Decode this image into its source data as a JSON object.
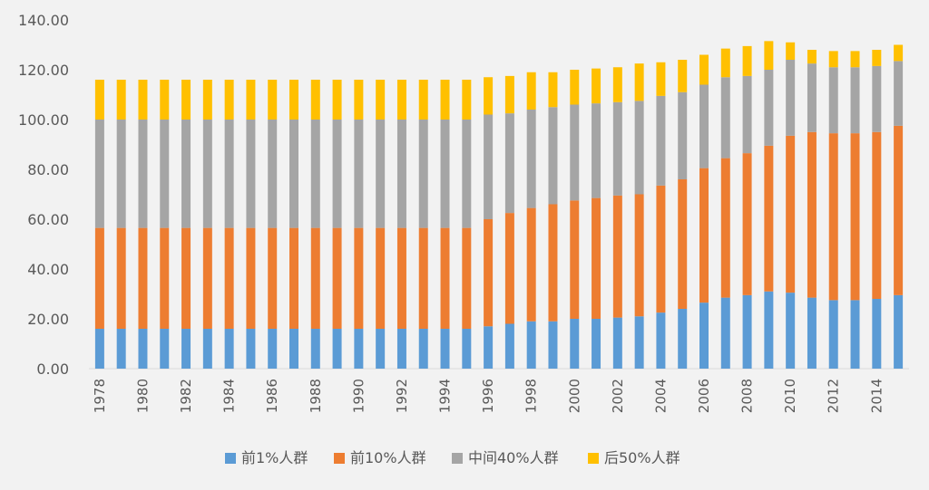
{
  "chart_data": {
    "type": "bar",
    "stacked": true,
    "title": "",
    "xlabel": "",
    "ylabel": "",
    "ylim": [
      0,
      140
    ],
    "yticks": [
      "0.00",
      "20.00",
      "40.00",
      "60.00",
      "80.00",
      "100.00",
      "120.00",
      "140.00"
    ],
    "grid": false,
    "legend_position": "bottom",
    "categories": [
      "1978",
      "1979",
      "1980",
      "1981",
      "1982",
      "1983",
      "1984",
      "1985",
      "1986",
      "1987",
      "1988",
      "1989",
      "1990",
      "1991",
      "1992",
      "1993",
      "1994",
      "1995",
      "1996",
      "1997",
      "1998",
      "1999",
      "2000",
      "2001",
      "2002",
      "2003",
      "2004",
      "2005",
      "2006",
      "2007",
      "2008",
      "2009",
      "2010",
      "2011",
      "2012",
      "2013",
      "2014",
      "2015"
    ],
    "series": [
      {
        "name": "前1%人群",
        "color": "#5b9bd5",
        "values": [
          16,
          16,
          16,
          16,
          16,
          16,
          16,
          16,
          16,
          16,
          16,
          16,
          16,
          16,
          16,
          16,
          16,
          16,
          17,
          18,
          19,
          19,
          20,
          20,
          20.5,
          21,
          22.5,
          24,
          26.5,
          28.5,
          29.5,
          31,
          30.5,
          28.5,
          27.5,
          27.5,
          28,
          29.5
        ]
      },
      {
        "name": "前10%人群",
        "color": "#ed7d31",
        "values": [
          40.5,
          40.5,
          40.5,
          40.5,
          40.5,
          40.5,
          40.5,
          40.5,
          40.5,
          40.5,
          40.5,
          40.5,
          40.5,
          40.5,
          40.5,
          40.5,
          40.5,
          40.5,
          43,
          44.5,
          45.5,
          47,
          47.5,
          48.5,
          49,
          49,
          51,
          52,
          54,
          56,
          57,
          58.5,
          63,
          66.5,
          67,
          67,
          67,
          68
        ]
      },
      {
        "name": "中间40%人群",
        "color": "#a5a5a5",
        "values": [
          43.5,
          43.5,
          43.5,
          43.5,
          43.5,
          43.5,
          43.5,
          43.5,
          43.5,
          43.5,
          43.5,
          43.5,
          43.5,
          43.5,
          43.5,
          43.5,
          43.5,
          43.5,
          42,
          40,
          39.5,
          39,
          38.5,
          38,
          37.5,
          37.5,
          36,
          35,
          33.5,
          32.5,
          31,
          30.5,
          30.5,
          27.5,
          26.5,
          26.5,
          26.5,
          26
        ]
      },
      {
        "name": "后50%人群",
        "color": "#ffc000",
        "values": [
          16,
          16,
          16,
          16,
          16,
          16,
          16,
          16,
          16,
          16,
          16,
          16,
          16,
          16,
          16,
          16,
          16,
          16,
          15,
          15,
          15,
          14,
          14,
          14,
          14,
          15,
          13.5,
          13,
          12,
          11.5,
          12,
          11.5,
          7,
          5.5,
          6.5,
          6.5,
          6.5,
          6.5
        ]
      }
    ]
  }
}
